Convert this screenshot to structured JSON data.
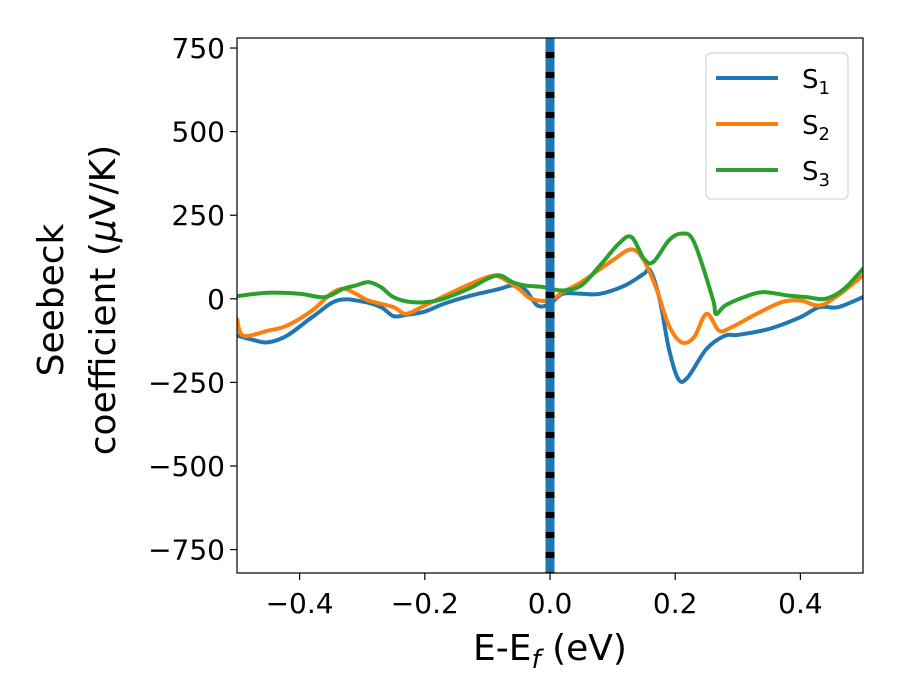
{
  "chart_data": {
    "type": "line",
    "title": "",
    "xlabel": {
      "main": "E-E",
      "sub": "f",
      "unit": " (eV)"
    },
    "ylabel": {
      "line1": "Seebeck",
      "line2_prefix": "coefficient  (",
      "line2_mu": "μ",
      "line2_suffix": "V/K)"
    },
    "xlim": [
      -0.5,
      0.5
    ],
    "ylim": [
      -820,
      780
    ],
    "xticks": [
      -0.4,
      -0.2,
      0.0,
      0.2,
      0.4
    ],
    "xtick_labels": [
      "−0.4",
      "−0.2",
      "0.0",
      "0.2",
      "0.4"
    ],
    "yticks": [
      -750,
      -500,
      -250,
      0,
      250,
      500,
      750
    ],
    "ytick_labels": [
      "−750",
      "−500",
      "−250",
      "0",
      "250",
      "500",
      "750"
    ],
    "grid": false,
    "legend_position": "top-right",
    "vertical_marker": {
      "x": 0.0,
      "black_color": "#000000",
      "dash_color": "#1f77b4"
    },
    "series": [
      {
        "name": "S",
        "sub": "1",
        "color": "#1f77b4",
        "points": [
          [
            -0.5,
            -110
          ],
          [
            -0.47,
            -125
          ],
          [
            -0.45,
            -130
          ],
          [
            -0.42,
            -110
          ],
          [
            -0.38,
            -55
          ],
          [
            -0.34,
            -5
          ],
          [
            -0.3,
            -8
          ],
          [
            -0.27,
            -25
          ],
          [
            -0.25,
            -52
          ],
          [
            -0.23,
            -48
          ],
          [
            -0.2,
            -38
          ],
          [
            -0.17,
            -15
          ],
          [
            -0.13,
            8
          ],
          [
            -0.08,
            30
          ],
          [
            -0.06,
            40
          ],
          [
            -0.04,
            28
          ],
          [
            -0.02,
            -20
          ],
          [
            0.0,
            -15
          ],
          [
            0.02,
            15
          ],
          [
            0.05,
            15
          ],
          [
            0.08,
            15
          ],
          [
            0.12,
            40
          ],
          [
            0.15,
            75
          ],
          [
            0.16,
            85
          ],
          [
            0.175,
            0
          ],
          [
            0.19,
            -150
          ],
          [
            0.205,
            -240
          ],
          [
            0.22,
            -235
          ],
          [
            0.25,
            -150
          ],
          [
            0.28,
            -110
          ],
          [
            0.3,
            -108
          ],
          [
            0.35,
            -90
          ],
          [
            0.4,
            -55
          ],
          [
            0.43,
            -25
          ],
          [
            0.46,
            -25
          ],
          [
            0.5,
            5
          ]
        ]
      },
      {
        "name": "S",
        "sub": "2",
        "color": "#ff7f0e",
        "points": [
          [
            -0.5,
            -60
          ],
          [
            -0.49,
            -110
          ],
          [
            -0.45,
            -95
          ],
          [
            -0.42,
            -80
          ],
          [
            -0.38,
            -35
          ],
          [
            -0.35,
            15
          ],
          [
            -0.33,
            30
          ],
          [
            -0.31,
            15
          ],
          [
            -0.29,
            -5
          ],
          [
            -0.25,
            -25
          ],
          [
            -0.23,
            -45
          ],
          [
            -0.2,
            -20
          ],
          [
            -0.15,
            25
          ],
          [
            -0.1,
            65
          ],
          [
            -0.08,
            65
          ],
          [
            -0.05,
            30
          ],
          [
            -0.03,
            0
          ],
          [
            0.0,
            -5
          ],
          [
            0.02,
            20
          ],
          [
            0.05,
            50
          ],
          [
            0.1,
            115
          ],
          [
            0.13,
            148
          ],
          [
            0.15,
            115
          ],
          [
            0.17,
            30
          ],
          [
            0.19,
            -80
          ],
          [
            0.21,
            -130
          ],
          [
            0.23,
            -115
          ],
          [
            0.25,
            -45
          ],
          [
            0.27,
            -95
          ],
          [
            0.29,
            -85
          ],
          [
            0.33,
            -45
          ],
          [
            0.37,
            -10
          ],
          [
            0.4,
            -5
          ],
          [
            0.43,
            -20
          ],
          [
            0.46,
            10
          ],
          [
            0.5,
            70
          ]
        ]
      },
      {
        "name": "S",
        "sub": "3",
        "color": "#2ca02c",
        "points": [
          [
            -0.5,
            8
          ],
          [
            -0.45,
            18
          ],
          [
            -0.4,
            15
          ],
          [
            -0.36,
            5
          ],
          [
            -0.33,
            30
          ],
          [
            -0.31,
            40
          ],
          [
            -0.29,
            50
          ],
          [
            -0.27,
            35
          ],
          [
            -0.25,
            5
          ],
          [
            -0.22,
            -10
          ],
          [
            -0.18,
            -5
          ],
          [
            -0.13,
            30
          ],
          [
            -0.1,
            60
          ],
          [
            -0.08,
            70
          ],
          [
            -0.06,
            50
          ],
          [
            -0.04,
            40
          ],
          [
            -0.01,
            35
          ],
          [
            0.02,
            25
          ],
          [
            0.05,
            40
          ],
          [
            0.08,
            100
          ],
          [
            0.11,
            165
          ],
          [
            0.13,
            185
          ],
          [
            0.15,
            120
          ],
          [
            0.165,
            110
          ],
          [
            0.19,
            175
          ],
          [
            0.21,
            195
          ],
          [
            0.23,
            170
          ],
          [
            0.26,
            0
          ],
          [
            0.265,
            -45
          ],
          [
            0.28,
            -20
          ],
          [
            0.31,
            5
          ],
          [
            0.34,
            20
          ],
          [
            0.38,
            10
          ],
          [
            0.41,
            5
          ],
          [
            0.44,
            0
          ],
          [
            0.47,
            30
          ],
          [
            0.5,
            90
          ]
        ]
      }
    ]
  }
}
